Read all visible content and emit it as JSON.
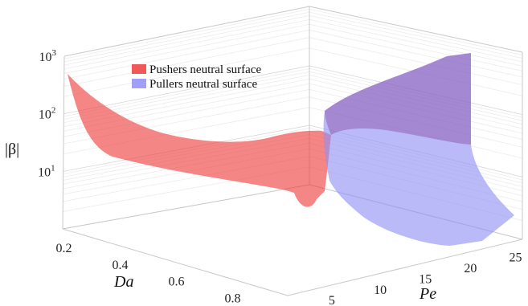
{
  "chart_data": {
    "type": "surface3d",
    "title": "",
    "legend": {
      "placement": "top-center",
      "entries": [
        {
          "label": "Pushers neutral surface",
          "color": "#ee3b3b"
        },
        {
          "label": "Pullers neutral surface",
          "color": "#8f8ff5"
        }
      ]
    },
    "axes": {
      "x": {
        "label": "Da",
        "ticks": [
          "0.2",
          "0.4",
          "0.6",
          "0.8"
        ],
        "range": [
          0.15,
          0.95
        ]
      },
      "y": {
        "label": "Pe",
        "ticks": [
          "5",
          "10",
          "15",
          "20",
          "25"
        ],
        "range": [
          1,
          27
        ]
      },
      "z": {
        "label": "|β|",
        "scale": "log",
        "ticks": [
          "10^1",
          "10^2",
          "10^3"
        ],
        "tick_base": "10",
        "tick_exponents": [
          "1",
          "2",
          "3"
        ],
        "range": [
          1,
          1000
        ]
      }
    },
    "grid": true,
    "series": [
      {
        "name": "Pushers neutral surface",
        "color": "#ee3b3b",
        "edge_start_da_0p15": [
          [
            1,
            900
          ],
          [
            2,
            60
          ],
          [
            4,
            18
          ],
          [
            8,
            10
          ],
          [
            15,
            8
          ],
          [
            20,
            7
          ],
          [
            26,
            6
          ]
        ],
        "edge_pe_1": [
          [
            0.15,
            900
          ],
          [
            0.4,
            150
          ],
          [
            0.6,
            40
          ],
          [
            0.8,
            15
          ],
          [
            0.95,
            10
          ]
        ],
        "edge_da_0p95": [
          [
            1,
            10
          ],
          [
            3,
            3
          ],
          [
            5,
            1.5
          ],
          [
            8,
            1.2
          ],
          [
            15,
            1.1
          ],
          [
            26,
            1
          ]
        ]
      },
      {
        "name": "Pullers neutral surface",
        "color": "#8f8ff5",
        "edge_start_da_0p15": [
          [
            26,
            1000
          ],
          [
            20,
            500
          ],
          [
            15,
            300
          ],
          [
            10,
            150
          ],
          [
            6,
            80
          ],
          [
            4,
            40
          ],
          [
            3,
            20
          ]
        ],
        "edge_pe_26": [
          [
            0.15,
            1000
          ],
          [
            0.4,
            300
          ],
          [
            0.6,
            60
          ],
          [
            0.8,
            10
          ],
          [
            0.95,
            2
          ]
        ],
        "edge_da_0p95": [
          [
            3,
            5
          ],
          [
            6,
            2
          ],
          [
            10,
            1.5
          ],
          [
            15,
            1.2
          ],
          [
            20,
            1.1
          ],
          [
            26,
            1
          ]
        ]
      }
    ]
  }
}
